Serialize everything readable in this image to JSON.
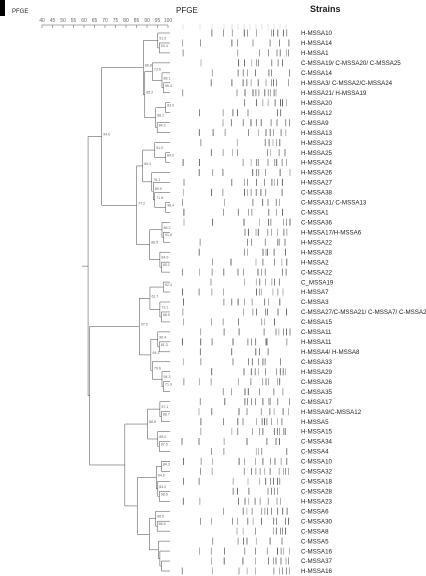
{
  "header": {
    "scale_title": "PFGE",
    "gel_title": "PFGE",
    "strains_title": "Strains"
  },
  "scale_ticks": [
    "40",
    "45",
    "50",
    "55",
    "60",
    "65",
    "70",
    "75",
    "80",
    "85",
    "90",
    "95",
    "100"
  ],
  "node_values": [
    "94.4",
    "91.5",
    "96.4",
    "88.1",
    "73.6",
    "83.0",
    "84.2",
    "88.2",
    "85.2",
    "86.8",
    "84.0",
    "91",
    "98.4",
    "71.8",
    "89.9",
    "79.1",
    "69.3",
    "91.8",
    "86.2",
    "80.1",
    "84.0",
    "88.5",
    "77.2",
    "94.0",
    "92.3",
    "88.0",
    "73.1",
    "61.7",
    "81.3",
    "90.4",
    "71.9",
    "94.3",
    "79.6",
    "94.3",
    "97.9",
    "88.7",
    "97.1",
    "87.5",
    "85.0",
    "88.8",
    "84.3",
    "98.5",
    "84.2",
    "94.6",
    "66.5",
    "86.5"
  ],
  "strains": [
    "H-MSSA10",
    "H-MSSA14",
    "H-MSSA1",
    "C-MSSA19/ C-MSSA20/ C-MSSA25",
    "C-MSSA14",
    "H-MSSA3/ C-MSSA2/C-MSSA24",
    "H-MSSA21/ H-MSSA19",
    "H-MSSA20",
    "H-MSSA12",
    "C-MSSA9",
    "H-MSSA13",
    "H-MSSA23",
    "H-MSSA25",
    "H-MSSA24",
    "H-MSSA26",
    "H-MSSA27",
    "C-MSSA38",
    "C-MSSA31/ C-MSSA13",
    "C-MSSA1",
    "C-MSSA36",
    "H-MSSA17/H-MSSA6",
    "H-MSSA22",
    "H-MSSA28",
    "H-MSSA2",
    "C-MSSA22",
    "C_MSSA19",
    "H-MSSA7",
    "C-MSSA3",
    "C-MSSA27/C-MSSA21/ C-MSSA7/ C-MSSA23",
    "C-MSSA15",
    "C-MSSA11",
    "H-MSSA11",
    "H-MSSA4/ H-MSSA8",
    "C-MSSA33",
    "H-MSSA29",
    "C-MSSA26",
    "C-MSSA35",
    "C-MSSA17",
    "H-MSSA9/C-MSSA12",
    "H-MSSA5",
    "H-MSSA15",
    "C-MSSA34",
    "C-MSSA4",
    "C-MSSA10",
    "C-MSSA32",
    "C-MSSA18",
    "C-MSSA28",
    "H-MSSA23",
    "C-MSSA6",
    "C-MSSA30",
    "C-MSSA8",
    "C-MSSA5",
    "C-MSSA16",
    "C-MSSA37",
    "H-MSSA16"
  ]
}
